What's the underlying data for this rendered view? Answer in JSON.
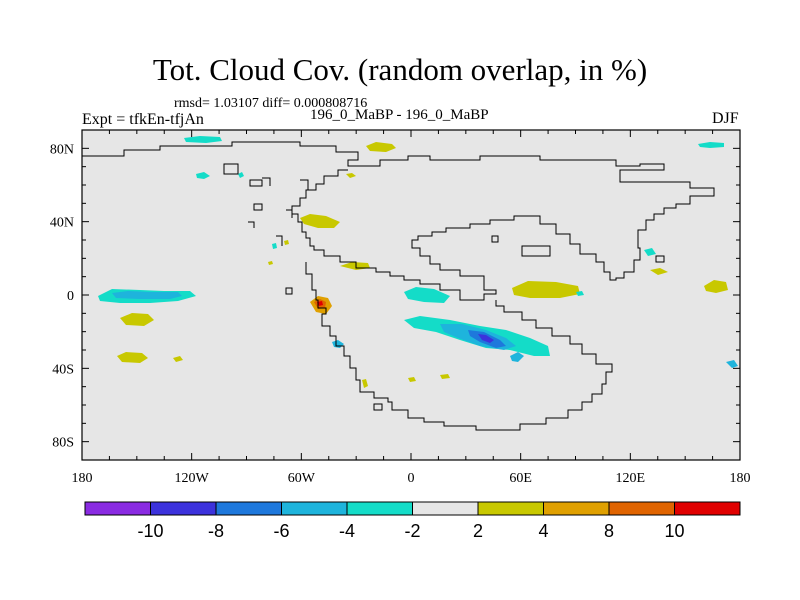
{
  "title": "Tot. Cloud Cov. (random overlap, in %)",
  "stats": "rmsd= 1.03107 diff= 0.000808716",
  "left_label": "Expt = tfkEn-tfjAn",
  "center_label": "196_0_MaBP - 196_0_MaBP",
  "right_label": "DJF",
  "map": {
    "projection": "cylindrical equidistant",
    "background_color": "#e6e6e6",
    "x_ticks": [
      "180",
      "120W",
      "60W",
      "0",
      "60E",
      "120E",
      "180"
    ],
    "y_ticks": [
      "80N",
      "40N",
      "0",
      "40S",
      "80S"
    ]
  },
  "colorbar": {
    "colors": [
      "#8a2be2",
      "#3c32dc",
      "#1e78dc",
      "#1eb4dc",
      "#14dcc8",
      "#e6e6e6",
      "#c8c800",
      "#e0a000",
      "#e06400",
      "#e00000"
    ],
    "labels": [
      "-10",
      "-8",
      "-6",
      "-4",
      "-2",
      "2",
      "4",
      "8",
      "10"
    ]
  },
  "chart_data": {
    "type": "heatmap",
    "variable": "Tot. Cloud Cov. (random overlap, in %)",
    "x_range": [
      -180,
      180
    ],
    "y_range": [
      -90,
      90
    ],
    "levels": [
      -10,
      -8,
      -6,
      -4,
      -2,
      2,
      4,
      8,
      10
    ],
    "anomaly_regions": [
      {
        "lon": -148,
        "lat": 2,
        "value": -3
      },
      {
        "lon": -118,
        "lat": -13,
        "value": 3
      },
      {
        "lon": -152,
        "lat": -34,
        "value": 3
      },
      {
        "lon": 0,
        "lat": 0,
        "value": -3
      },
      {
        "lon": 38,
        "lat": -23,
        "value": -3
      },
      {
        "lon": 42,
        "lat": -25,
        "value": -7
      },
      {
        "lon": 62,
        "lat": 3,
        "value": 3
      },
      {
        "lon": -52,
        "lat": -10,
        "value": 7
      },
      {
        "lon": -32,
        "lat": 78,
        "value": 3
      },
      {
        "lon": -50,
        "lat": 42,
        "value": 3
      },
      {
        "lon": -33,
        "lat": 16,
        "value": 3
      },
      {
        "lon": 168,
        "lat": 82,
        "value": -3
      },
      {
        "lon": 168,
        "lat": 5,
        "value": 3
      }
    ]
  }
}
